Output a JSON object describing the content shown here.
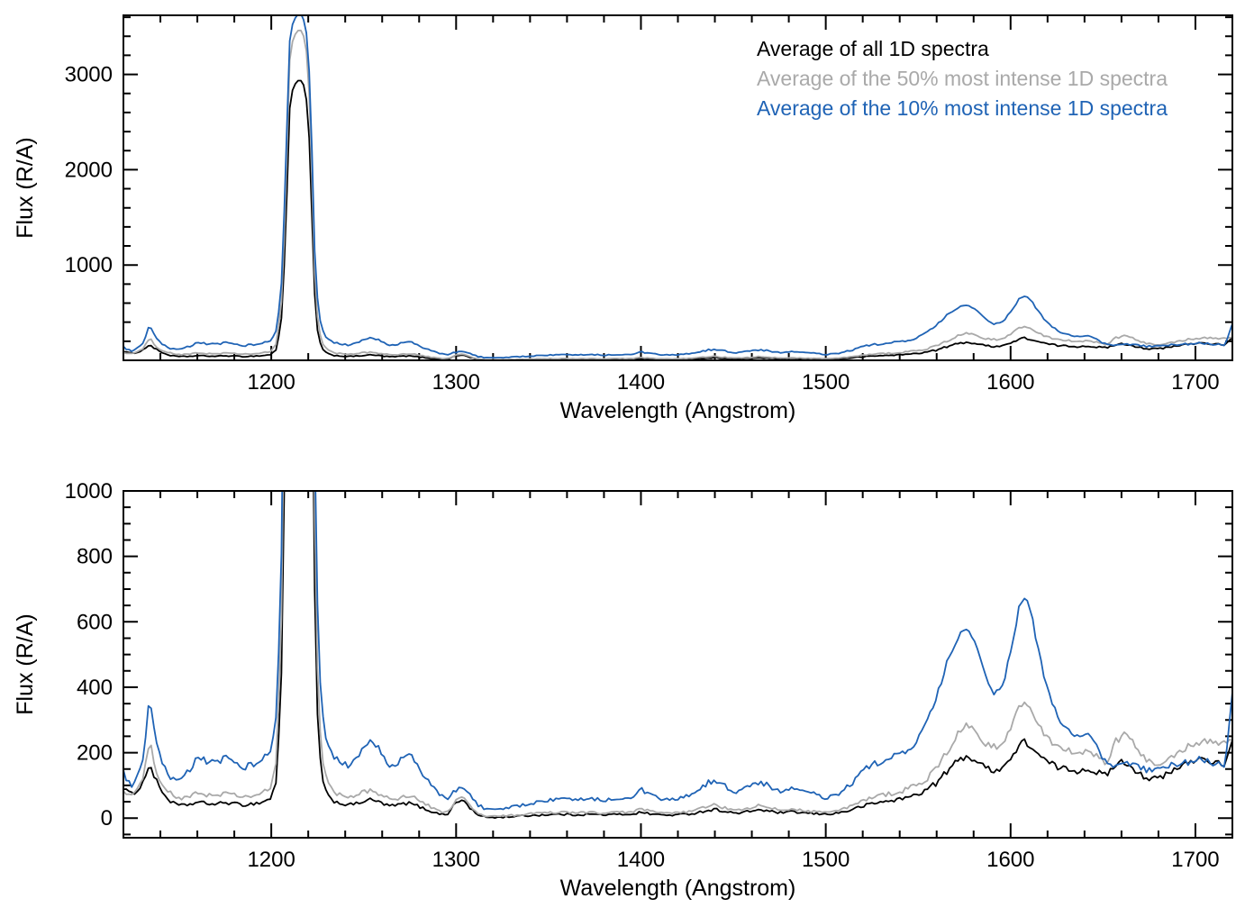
{
  "chart_data": {
    "type": "line",
    "title": "",
    "xlabel": "Wavelength (Angstrom)",
    "ylabel": "Flux (R/A)",
    "xlim": [
      1120,
      1720
    ],
    "xticks": [
      1200,
      1300,
      1400,
      1500,
      1600,
      1700
    ],
    "x_minor_step": 20,
    "grid": false,
    "legend": {
      "position": "top-right-inside-top-panel",
      "entries": [
        {
          "label": "Average of all 1D spectra",
          "color": "#000000"
        },
        {
          "label": "Average of the 50% most intense 1D spectra",
          "color": "#a9a9a9"
        },
        {
          "label": "Average of the 10% most intense 1D spectra",
          "color": "#1f63b5"
        }
      ]
    },
    "panels": [
      {
        "name": "top",
        "ylim": [
          0,
          3620
        ],
        "yticks": [
          1000,
          2000,
          3000
        ],
        "y_minor_step": 200,
        "ylabel": "Flux (R/A)",
        "xlabel": "Wavelength (Angstrom)",
        "show_legend": true
      },
      {
        "name": "bottom",
        "ylim": [
          -60,
          1000
        ],
        "yticks": [
          0,
          200,
          400,
          600,
          800,
          1000
        ],
        "y_minor_step": 50,
        "ylabel": "Flux (R/A)",
        "xlabel": "Wavelength (Angstrom)",
        "show_legend": false
      }
    ],
    "x": [
      1120,
      1124,
      1128,
      1131,
      1134,
      1137,
      1140,
      1144,
      1148,
      1152,
      1156,
      1160,
      1165,
      1170,
      1175,
      1180,
      1185,
      1190,
      1195,
      1200,
      1203,
      1206,
      1208,
      1210,
      1212,
      1214,
      1216,
      1218,
      1220,
      1222,
      1224,
      1227,
      1230,
      1234,
      1238,
      1242,
      1246,
      1250,
      1254,
      1258,
      1262,
      1266,
      1270,
      1274,
      1278,
      1282,
      1286,
      1290,
      1295,
      1300,
      1304,
      1308,
      1312,
      1316,
      1322,
      1328,
      1334,
      1340,
      1348,
      1356,
      1364,
      1372,
      1380,
      1388,
      1396,
      1400,
      1404,
      1410,
      1416,
      1422,
      1428,
      1434,
      1440,
      1446,
      1452,
      1458,
      1464,
      1470,
      1476,
      1482,
      1488,
      1494,
      1500,
      1506,
      1512,
      1518,
      1524,
      1530,
      1536,
      1542,
      1548,
      1554,
      1560,
      1566,
      1572,
      1576,
      1580,
      1585,
      1590,
      1595,
      1600,
      1604,
      1607,
      1610,
      1614,
      1618,
      1622,
      1627,
      1632,
      1637,
      1642,
      1647,
      1652,
      1657,
      1662,
      1667,
      1672,
      1677,
      1682,
      1687,
      1692,
      1697,
      1702,
      1707,
      1712,
      1716,
      1720
    ],
    "series": [
      {
        "key": "all",
        "name": "Average of all 1D spectra",
        "color": "#000000",
        "values": [
          95,
          70,
          90,
          110,
          170,
          120,
          90,
          58,
          42,
          38,
          42,
          48,
          45,
          42,
          48,
          44,
          40,
          44,
          48,
          62,
          120,
          500,
          1500,
          2650,
          2890,
          2925,
          2930,
          2870,
          2600,
          1500,
          420,
          130,
          70,
          52,
          44,
          40,
          44,
          52,
          56,
          50,
          40,
          37,
          42,
          46,
          40,
          30,
          22,
          14,
          10,
          48,
          55,
          28,
          8,
          3,
          2,
          4,
          6,
          8,
          10,
          12,
          10,
          12,
          10,
          11,
          13,
          18,
          14,
          10,
          9,
          11,
          14,
          21,
          27,
          20,
          14,
          20,
          26,
          20,
          16,
          19,
          16,
          13,
          12,
          15,
          22,
          33,
          43,
          49,
          54,
          60,
          70,
          85,
          108,
          145,
          178,
          190,
          180,
          158,
          148,
          152,
          180,
          215,
          235,
          225,
          200,
          178,
          165,
          152,
          148,
          145,
          152,
          140,
          128,
          168,
          172,
          150,
          128,
          118,
          125,
          140,
          158,
          172,
          182,
          178,
          168,
          158,
          230
        ]
      },
      {
        "key": "top50",
        "name": "Average of the 50% most intense 1D spectra",
        "color": "#a9a9a9",
        "values": [
          85,
          68,
          92,
          120,
          240,
          160,
          118,
          82,
          64,
          60,
          66,
          76,
          72,
          68,
          76,
          70,
          64,
          68,
          74,
          95,
          180,
          700,
          1900,
          3150,
          3400,
          3450,
          3460,
          3390,
          3100,
          1900,
          600,
          200,
          110,
          80,
          68,
          62,
          68,
          80,
          85,
          76,
          62,
          56,
          64,
          70,
          62,
          46,
          35,
          22,
          16,
          55,
          62,
          35,
          12,
          6,
          5,
          7,
          10,
          13,
          16,
          18,
          16,
          18,
          15,
          17,
          20,
          28,
          22,
          16,
          14,
          17,
          22,
          32,
          40,
          30,
          22,
          30,
          38,
          30,
          24,
          28,
          24,
          20,
          18,
          22,
          32,
          48,
          62,
          70,
          76,
          85,
          98,
          118,
          150,
          205,
          262,
          288,
          272,
          235,
          215,
          225,
          270,
          330,
          360,
          345,
          300,
          260,
          235,
          215,
          205,
          198,
          205,
          185,
          165,
          235,
          255,
          225,
          185,
          168,
          172,
          188,
          205,
          222,
          232,
          236,
          232,
          228,
          240
        ]
      },
      {
        "key": "top10",
        "name": "Average of the 10% most intense 1D spectra",
        "color": "#1f63b5",
        "values": [
          140,
          95,
          130,
          175,
          370,
          255,
          180,
          130,
          110,
          122,
          150,
          185,
          175,
          165,
          185,
          172,
          156,
          165,
          175,
          210,
          320,
          900,
          2200,
          3350,
          3580,
          3620,
          3630,
          3560,
          3300,
          2200,
          800,
          340,
          230,
          185,
          165,
          160,
          180,
          215,
          235,
          212,
          172,
          160,
          180,
          196,
          172,
          132,
          106,
          76,
          60,
          85,
          95,
          68,
          40,
          28,
          25,
          30,
          38,
          45,
          52,
          58,
          55,
          62,
          55,
          60,
          68,
          88,
          72,
          58,
          55,
          62,
          72,
          100,
          118,
          95,
          78,
          95,
          112,
          95,
          82,
          90,
          82,
          72,
          62,
          70,
          95,
          130,
          160,
          175,
          185,
          200,
          225,
          280,
          370,
          480,
          555,
          580,
          545,
          455,
          385,
          395,
          500,
          630,
          685,
          655,
          545,
          430,
          355,
          300,
          262,
          242,
          250,
          215,
          165,
          155,
          172,
          162,
          150,
          145,
          152,
          160,
          168,
          172,
          178,
          172,
          168,
          162,
          380
        ]
      }
    ]
  }
}
